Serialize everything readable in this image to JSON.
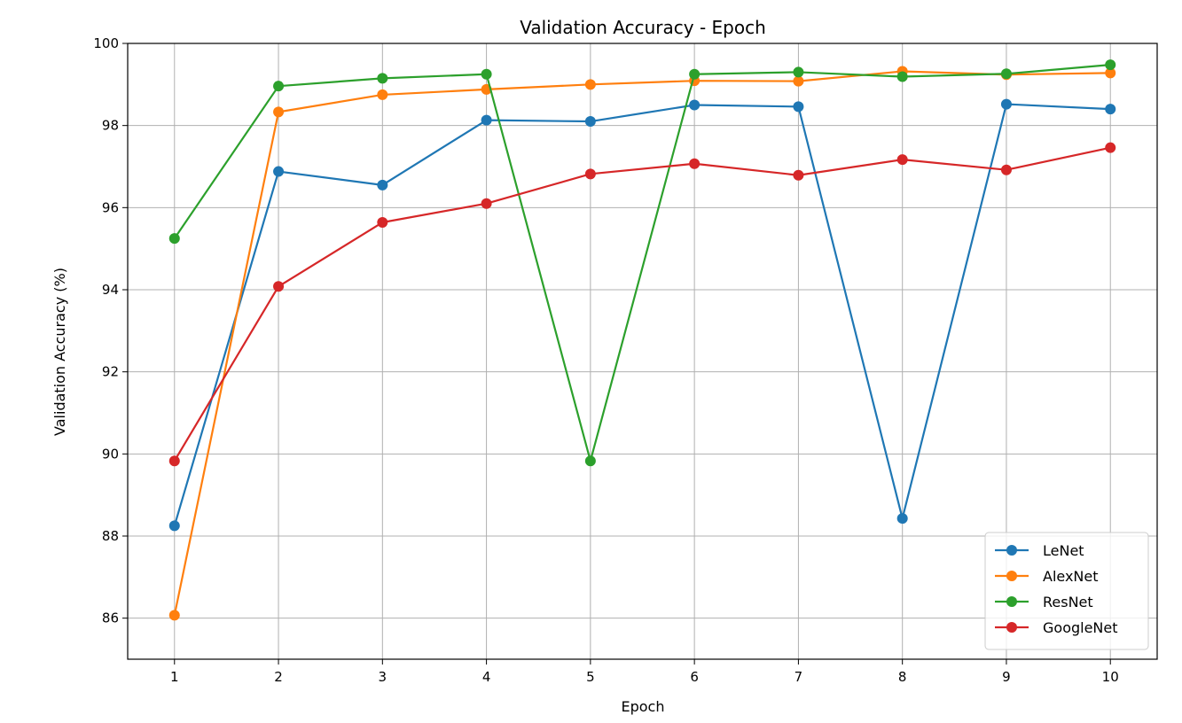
{
  "chart_data": {
    "type": "line",
    "title": "Validation Accuracy - Epoch",
    "xlabel": "Epoch",
    "ylabel": "Validation Accuracy (%)",
    "x": [
      1,
      2,
      3,
      4,
      5,
      6,
      7,
      8,
      9,
      10
    ],
    "xlim": [
      0.55,
      10.45
    ],
    "ylim": [
      85,
      100
    ],
    "yticks": [
      86,
      88,
      90,
      92,
      94,
      96,
      98,
      100
    ],
    "xticks": [
      1,
      2,
      3,
      4,
      5,
      6,
      7,
      8,
      9,
      10
    ],
    "grid": true,
    "legend_position": "lower-right",
    "markers": "circle",
    "series": [
      {
        "name": "LeNet",
        "color": "#1f77b4",
        "values": [
          88.25,
          96.88,
          96.55,
          98.13,
          98.1,
          98.5,
          98.46,
          88.43,
          98.52,
          98.4
        ]
      },
      {
        "name": "AlexNet",
        "color": "#ff7f0e",
        "values": [
          86.07,
          98.33,
          98.75,
          98.88,
          99.0,
          99.09,
          99.08,
          99.32,
          99.24,
          99.28
        ]
      },
      {
        "name": "ResNet",
        "color": "#2ca02c",
        "values": [
          95.25,
          98.96,
          99.15,
          99.25,
          89.83,
          99.25,
          99.3,
          99.19,
          99.26,
          99.48
        ]
      },
      {
        "name": "GoogleNet",
        "color": "#d62728",
        "values": [
          89.83,
          94.08,
          95.64,
          96.1,
          96.82,
          97.07,
          96.79,
          97.17,
          96.92,
          97.46
        ]
      }
    ]
  }
}
